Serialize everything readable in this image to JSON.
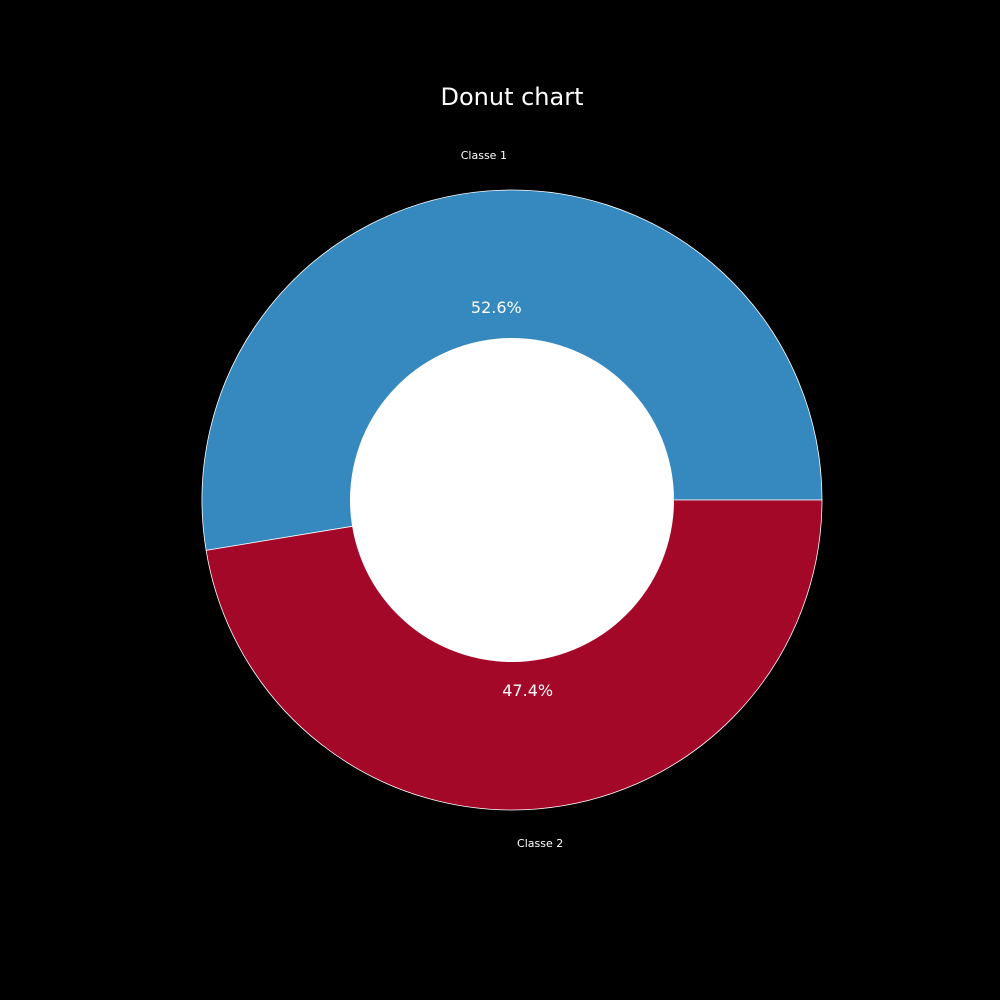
{
  "chart_data": {
    "type": "pie",
    "title": "Donut chart",
    "categories": [
      "Classe 1",
      "Classe 2"
    ],
    "values": [
      52.6,
      47.4
    ],
    "value_labels": [
      "52.6%",
      "47.4%"
    ],
    "colors": [
      "#3589be",
      "#a30828"
    ],
    "hole_color": "#ffffff",
    "edge_color": "#ffffff",
    "background": "#000000",
    "start_angle_deg": 0,
    "direction": "counterclockwise",
    "legend": "none",
    "grid": false
  }
}
